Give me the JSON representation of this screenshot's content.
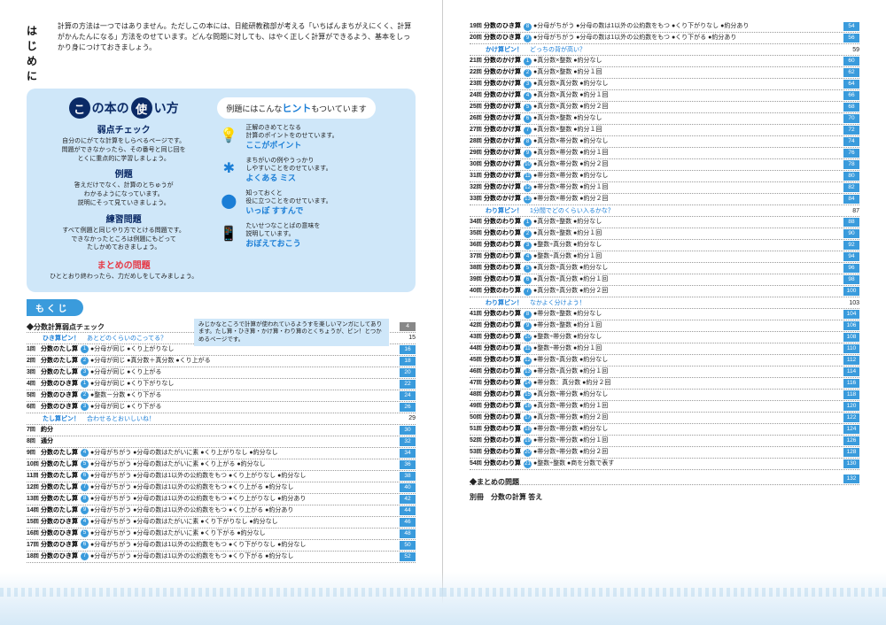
{
  "hajime": {
    "title": "はじめに",
    "text": "計算の方法は一つではありません。ただしこの本には、日能研教務部が考える「いちばんまちがえにくく、計算がかんたんになる」方法をのせています。どんな問題に対しても、はやく正しく計算ができるよう、基本をしっかり身につけておきましょう。"
  },
  "panel": {
    "titleA": "の本の",
    "titleB": "い方",
    "circleA": "こ",
    "circleB": "使",
    "s1": "弱点チェック",
    "s1d": "自分のにがてな計算をしらべるページです。\n問題ができなかったら、その番号と同じ回を\nとくに重点的に学習しましょう。",
    "s2": "例題",
    "s2d": "答えだけでなく、計算のとちゅうが\nわかるようになっています。\n説明にそって見ていきましょう。",
    "s3": "練習問題",
    "s3d": "すべて例題と同じやり方でとける問題です。\nできなかったところは例題にもどって\nたしかめておきましょう。",
    "s4": "まとめの問題",
    "s4d": "ひととおり終わったら、力だめしをしてみましょう。",
    "speech": "例題にはこんな",
    "speechH": "ヒント",
    "speech2": "もついています",
    "h1t": "正解のきめてとなる\n計算のポイントをのせています。",
    "h1tag": "ここがポイント",
    "h2t": "まちがいの例やうっかり\nしやすいことをのせています。",
    "h2tag": "よくある ミス",
    "h3t": "知っておくと\n役に立つことをのせています。",
    "h3tag": "いっぽ すすんで",
    "h4t": "たいせつなことばの意味を\n説明しています。",
    "h4tag": "おぼえておこう"
  },
  "mokuji": "も く じ",
  "note": "みじかなところで計算が使われているようすを楽しいマンガにしてあります。たし算・ひき算・かけ算・わり算のとくちょうが、ピン！とつかめるページです。",
  "check": "◆分数計算弱点チェック",
  "checkPg": "4",
  "sects": [
    {
      "label": "ひき算ピン！",
      "sub": "あとどのくらいのこってる？",
      "pg": "15"
    },
    {
      "label": "たし算ピン！",
      "sub": "合わせるとおいしいね！",
      "pg": "29"
    },
    {
      "label": "かけ算ピン！",
      "sub": "どっちの背が高い？",
      "pg": "59"
    },
    {
      "label": "わり算ピン！",
      "sub": "1分間でどのくらい入るかな？",
      "pg": "87"
    },
    {
      "label": "わり算ピン！",
      "sub": "なかよく分けよう！",
      "pg": "103"
    }
  ],
  "left": [
    {
      "n": "1",
      "t": "分数のたし算",
      "c": "1",
      "d": "●分母が同じ ●くり上がりなし",
      "p": "16"
    },
    {
      "n": "2",
      "t": "分数のたし算",
      "c": "2",
      "d": "●分母が同じ ●真分数＋真分数 ●くり上がる",
      "p": "18"
    },
    {
      "n": "3",
      "t": "分数のたし算",
      "c": "3",
      "d": "●分母が同じ ●くり上がる",
      "p": "20"
    },
    {
      "n": "4",
      "t": "分数のひき算",
      "c": "1",
      "d": "●分母が同じ ●くり下がりなし",
      "p": "22"
    },
    {
      "n": "5",
      "t": "分数のひき算",
      "c": "2",
      "d": "●整数－分数 ●くり下がる",
      "p": "24"
    },
    {
      "n": "6",
      "t": "分数のひき算",
      "c": "3",
      "d": "●分母が同じ ●くり下がる",
      "p": "26"
    },
    {
      "n": "7",
      "t": "約分",
      "c": "",
      "d": "",
      "p": "30"
    },
    {
      "n": "8",
      "t": "通分",
      "c": "",
      "d": "",
      "p": "32"
    },
    {
      "n": "9",
      "t": "分数のたし算",
      "c": "4",
      "d": "●分母がちがう ●分母の数はたがいに素 ●くり上がりなし ●約分なし",
      "p": "34"
    },
    {
      "n": "10",
      "t": "分数のたし算",
      "c": "5",
      "d": "●分母がちがう ●分母の数はたがいに素 ●くり上がる ●約分なし",
      "p": "36"
    },
    {
      "n": "11",
      "t": "分数のたし算",
      "c": "6",
      "d": "●分母がちがう ●分母の数は1以外の公約数をもつ ●くり上がりなし ●約分なし",
      "p": "38"
    },
    {
      "n": "12",
      "t": "分数のたし算",
      "c": "7",
      "d": "●分母がちがう ●分母の数は1以外の公約数をもつ ●くり上がる ●約分なし",
      "p": "40"
    },
    {
      "n": "13",
      "t": "分数のたし算",
      "c": "8",
      "d": "●分母がちがう ●分母の数は1以外の公約数をもつ ●くり上がりなし ●約分あり",
      "p": "42"
    },
    {
      "n": "14",
      "t": "分数のたし算",
      "c": "9",
      "d": "●分母がちがう ●分母の数は1以外の公約数をもつ ●くり上がる ●約分あり",
      "p": "44"
    },
    {
      "n": "15",
      "t": "分数のひき算",
      "c": "4",
      "d": "●分母がちがう ●分母の数はたがいに素 ●くり下がりなし ●約分なし",
      "p": "46"
    },
    {
      "n": "16",
      "t": "分数のひき算",
      "c": "5",
      "d": "●分母がちがう ●分母の数はたがいに素 ●くり下がる ●約分なし",
      "p": "48"
    },
    {
      "n": "17",
      "t": "分数のひき算",
      "c": "6",
      "d": "●分母がちがう ●分母の数は1以外の公約数をもつ ●くり下がりなし ●約分なし",
      "p": "50"
    },
    {
      "n": "18",
      "t": "分数のひき算",
      "c": "7",
      "d": "●分母がちがう ●分母の数は1以外の公約数をもつ ●くり下がる ●約分なし",
      "p": "52"
    }
  ],
  "right": [
    {
      "n": "19",
      "t": "分数のひき算",
      "c": "8",
      "d": "●分母がちがう ●分母の数は1以外の公約数をもつ ●くり下がりなし ●約分あり",
      "p": "54"
    },
    {
      "n": "20",
      "t": "分数のひき算",
      "c": "9",
      "d": "●分母がちがう ●分母の数は1以外の公約数をもつ ●くり下がる ●約分あり",
      "p": "56"
    },
    {
      "n": "21",
      "t": "分数のかけ算",
      "c": "1",
      "d": "●真分数×整数 ●約分なし",
      "p": "60"
    },
    {
      "n": "22",
      "t": "分数のかけ算",
      "c": "2",
      "d": "●真分数×整数 ●約分１回",
      "p": "62"
    },
    {
      "n": "23",
      "t": "分数のかけ算",
      "c": "3",
      "d": "●真分数×真分数 ●約分なし",
      "p": "64"
    },
    {
      "n": "24",
      "t": "分数のかけ算",
      "c": "4",
      "d": "●真分数×真分数 ●約分１回",
      "p": "66"
    },
    {
      "n": "25",
      "t": "分数のかけ算",
      "c": "5",
      "d": "●真分数×真分数 ●約分２回",
      "p": "68"
    },
    {
      "n": "26",
      "t": "分数のかけ算",
      "c": "6",
      "d": "●真分数×整数 ●約分なし",
      "p": "70"
    },
    {
      "n": "27",
      "t": "分数のかけ算",
      "c": "7",
      "d": "●真分数×整数 ●約分１回",
      "p": "72"
    },
    {
      "n": "28",
      "t": "分数のかけ算",
      "c": "8",
      "d": "●真分数×帯分数 ●約分なし",
      "p": "74"
    },
    {
      "n": "29",
      "t": "分数のかけ算",
      "c": "9",
      "d": "●真分数×帯分数 ●約分１回",
      "p": "76"
    },
    {
      "n": "30",
      "t": "分数のかけ算",
      "c": "10",
      "d": "●真分数×帯分数 ●約分２回",
      "p": "78"
    },
    {
      "n": "31",
      "t": "分数のかけ算",
      "c": "11",
      "d": "●帯分数×帯分数 ●約分なし",
      "p": "80"
    },
    {
      "n": "32",
      "t": "分数のかけ算",
      "c": "12",
      "d": "●帯分数×帯分数 ●約分１回",
      "p": "82"
    },
    {
      "n": "33",
      "t": "分数のかけ算",
      "c": "13",
      "d": "●帯分数×帯分数 ●約分２回",
      "p": "84"
    },
    {
      "n": "34",
      "t": "分数のわり算",
      "c": "1",
      "d": "●真分数÷整数 ●約分なし",
      "p": "88"
    },
    {
      "n": "35",
      "t": "分数のわり算",
      "c": "2",
      "d": "●真分数÷整数 ●約分１回",
      "p": "90"
    },
    {
      "n": "36",
      "t": "分数のわり算",
      "c": "3",
      "d": "●整数÷真分数 ●約分なし",
      "p": "92"
    },
    {
      "n": "37",
      "t": "分数のわり算",
      "c": "4",
      "d": "●整数÷真分数 ●約分１回",
      "p": "94"
    },
    {
      "n": "38",
      "t": "分数のわり算",
      "c": "5",
      "d": "●真分数÷真分数 ●約分なし",
      "p": "96"
    },
    {
      "n": "39",
      "t": "分数のわり算",
      "c": "6",
      "d": "●真分数÷真分数 ●約分１回",
      "p": "98"
    },
    {
      "n": "40",
      "t": "分数のわり算",
      "c": "7",
      "d": "●真分数÷真分数 ●約分２回",
      "p": "100"
    },
    {
      "n": "41",
      "t": "分数のわり算",
      "c": "8",
      "d": "●帯分数÷整数 ●約分なし",
      "p": "104"
    },
    {
      "n": "42",
      "t": "分数のわり算",
      "c": "9",
      "d": "●帯分数÷整数 ●約分１回",
      "p": "106"
    },
    {
      "n": "43",
      "t": "分数のわり算",
      "c": "10",
      "d": "●整数÷帯分数 ●約分なし",
      "p": "108"
    },
    {
      "n": "44",
      "t": "分数のわり算",
      "c": "11",
      "d": "●整数÷帯分数 ●約分１回",
      "p": "110"
    },
    {
      "n": "45",
      "t": "分数のわり算",
      "c": "12",
      "d": "●帯分数÷真分数 ●約分なし",
      "p": "112"
    },
    {
      "n": "46",
      "t": "分数のわり算",
      "c": "13",
      "d": "●帯分数÷真分数 ●約分１回",
      "p": "114"
    },
    {
      "n": "47",
      "t": "分数のわり算",
      "c": "14",
      "d": "●帯分数：真分数 ●約分２回",
      "p": "116"
    },
    {
      "n": "48",
      "t": "分数のわり算",
      "c": "15",
      "d": "●真分数÷帯分数 ●約分なし",
      "p": "118"
    },
    {
      "n": "49",
      "t": "分数のわり算",
      "c": "16",
      "d": "●真分数÷帯分数 ●約分１回",
      "p": "120"
    },
    {
      "n": "50",
      "t": "分数のわり算",
      "c": "17",
      "d": "●真分数÷帯分数 ●約分２回",
      "p": "122"
    },
    {
      "n": "51",
      "t": "分数のわり算",
      "c": "18",
      "d": "●帯分数÷帯分数 ●約分なし",
      "p": "124"
    },
    {
      "n": "52",
      "t": "分数のわり算",
      "c": "19",
      "d": "●帯分数÷帯分数 ●約分１回",
      "p": "126"
    },
    {
      "n": "53",
      "t": "分数のわり算",
      "c": "20",
      "d": "●帯分数÷帯分数 ●約分２回",
      "p": "128"
    },
    {
      "n": "54",
      "t": "分数のわり算",
      "c": "21",
      "d": "●整数÷整数 ●商を分数で表す",
      "p": "130"
    }
  ],
  "matome": "◆まとめの問題",
  "matomePg": "132",
  "bessatsu": "別冊　分数の計算 答え"
}
